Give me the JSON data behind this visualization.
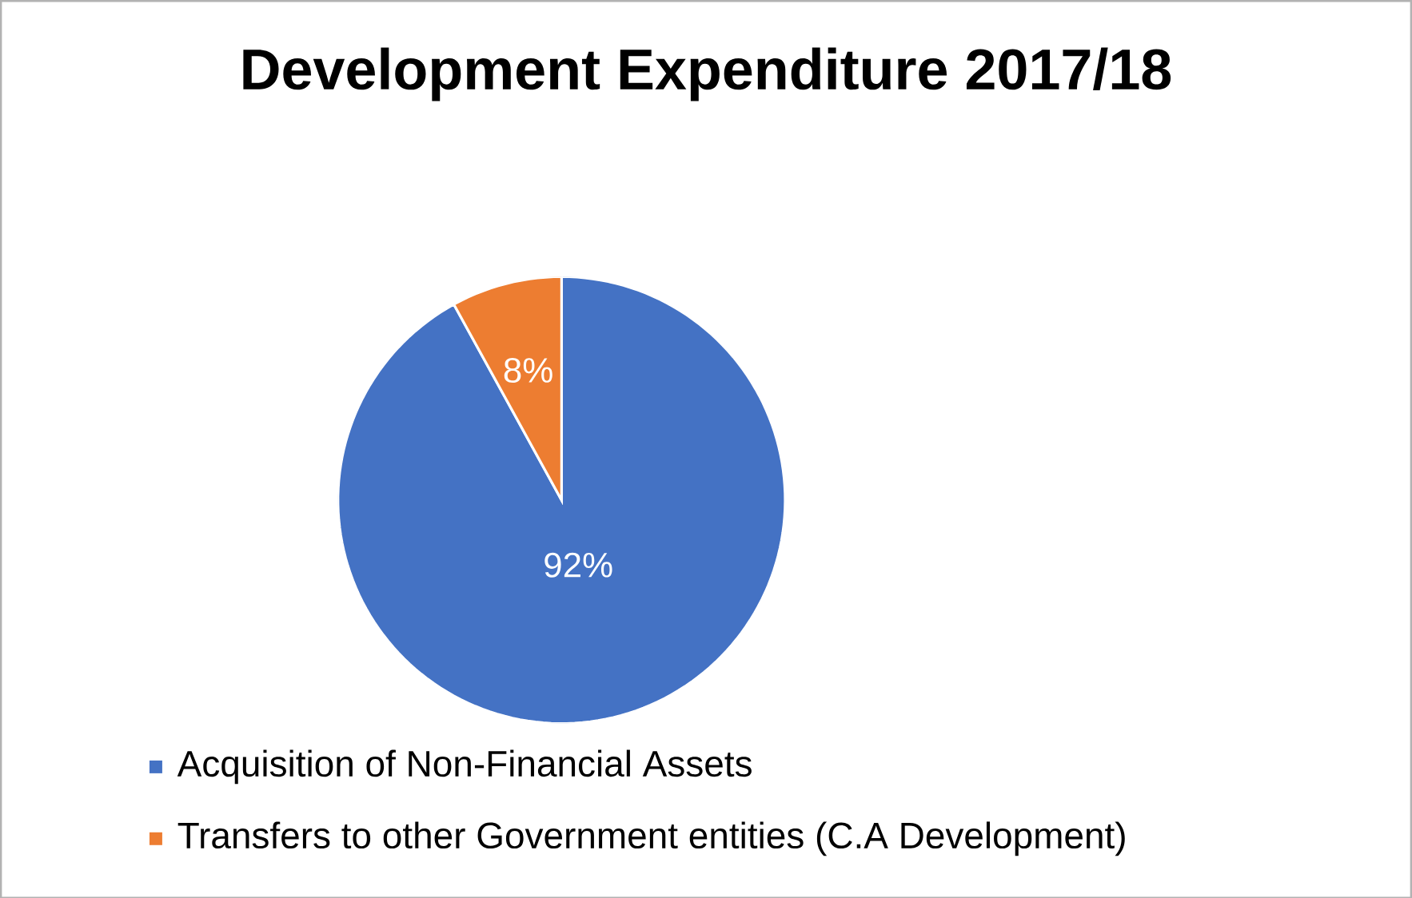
{
  "chart_data": {
    "type": "pie",
    "title": "Development Expenditure  2017/18",
    "categories": [
      "Acquisition of Non-Financial Assets",
      "Transfers to other Government entities (C.A Development)"
    ],
    "values": [
      92,
      8
    ],
    "colors": [
      "#4472c4",
      "#ed7d31"
    ],
    "value_labels": [
      "92%",
      "8%"
    ],
    "legend": "bottom"
  }
}
